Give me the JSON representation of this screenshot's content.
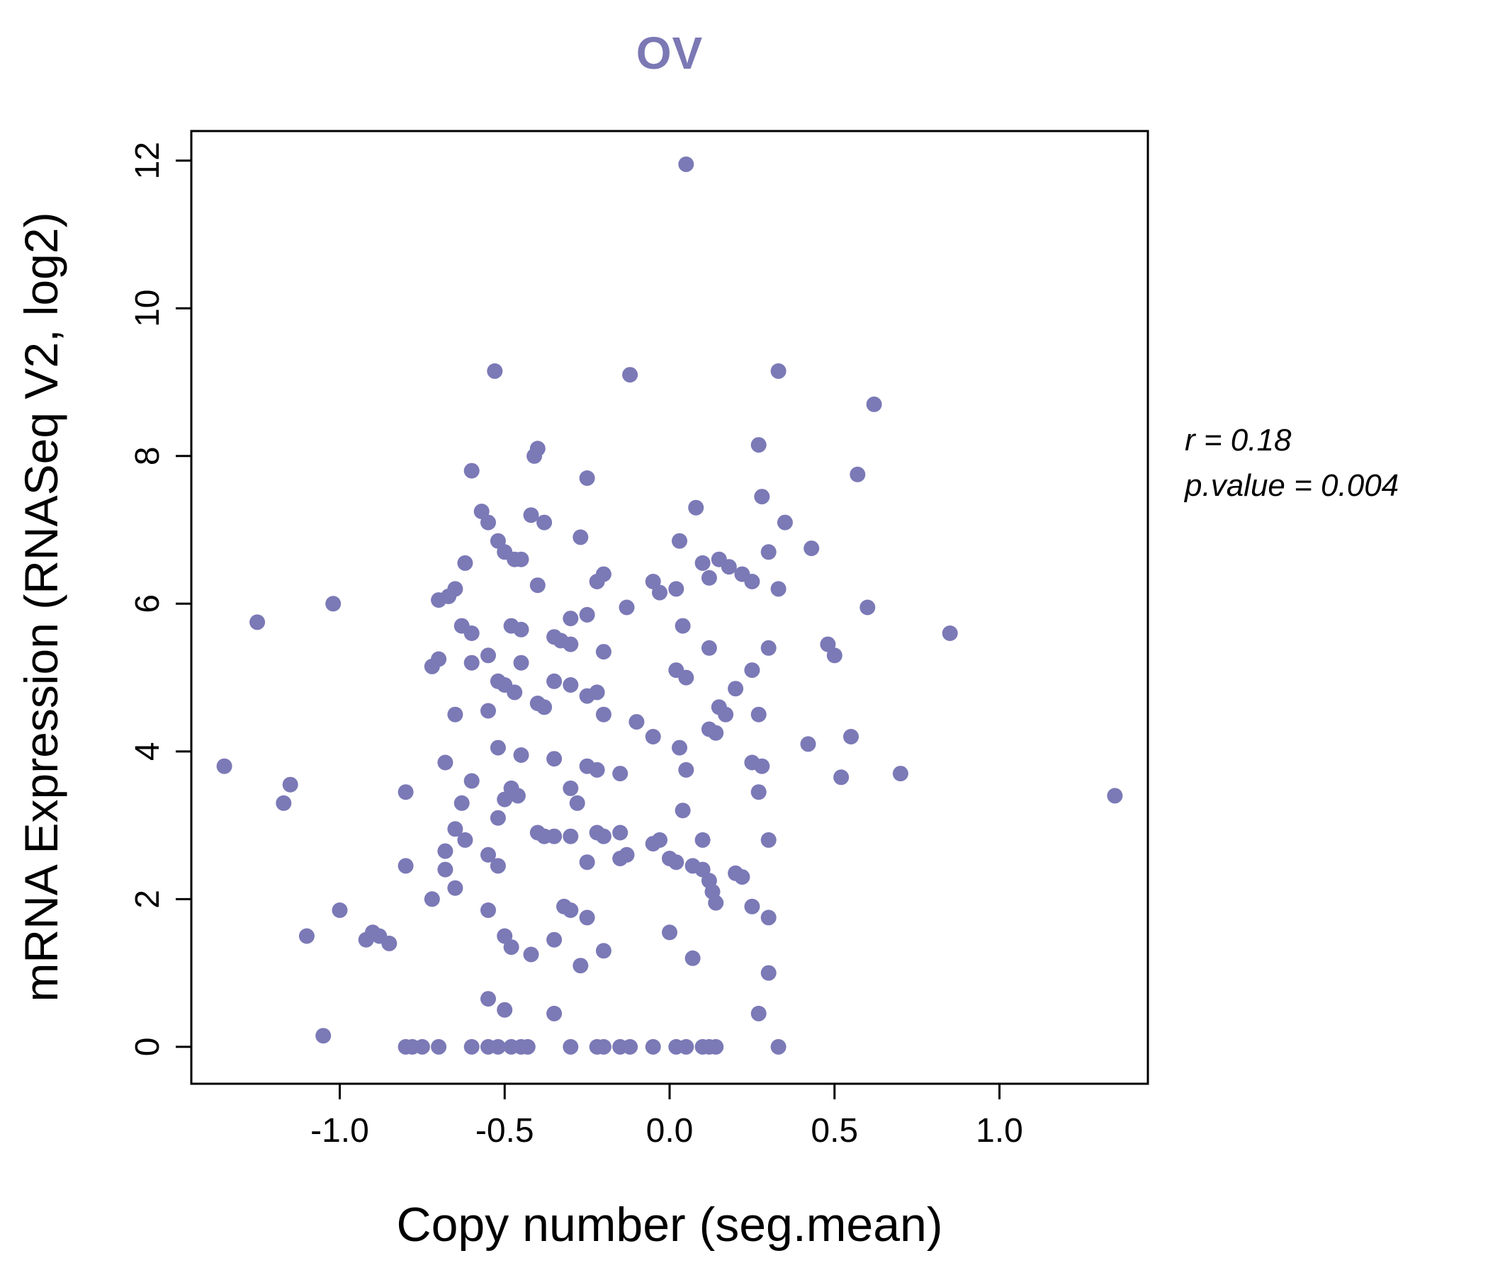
{
  "title": "OV",
  "title_color": "#7b78b4",
  "annotation": {
    "line1": "r = 0.18",
    "line2": "p.value = 0.004"
  },
  "chart_data": {
    "type": "scatter",
    "title": "OV",
    "xlabel": "Copy number (seg.mean)",
    "ylabel": "mRNA Expression (RNASeq V2, log2)",
    "xlim": [
      -1.45,
      1.45
    ],
    "ylim": [
      -0.5,
      12.4
    ],
    "grid": false,
    "xticks": [
      -1.0,
      -0.5,
      0.0,
      0.5,
      1.0
    ],
    "xtick_labels": [
      "-1.0",
      "-0.5",
      "0.0",
      "0.5",
      "1.0"
    ],
    "yticks": [
      0,
      2,
      4,
      6,
      8,
      10,
      12
    ],
    "ytick_labels": [
      "0",
      "2",
      "4",
      "6",
      "8",
      "10",
      "12"
    ],
    "point_color": "#7b79b6",
    "correlation_r": 0.18,
    "p_value": 0.004,
    "points": [
      [
        0.05,
        11.95
      ],
      [
        -0.53,
        9.15
      ],
      [
        -0.12,
        9.1
      ],
      [
        0.33,
        9.15
      ],
      [
        0.62,
        8.7
      ],
      [
        0.27,
        8.15
      ],
      [
        -0.4,
        8.1
      ],
      [
        -0.41,
        8.0
      ],
      [
        -0.6,
        7.8
      ],
      [
        0.57,
        7.75
      ],
      [
        -0.25,
        7.7
      ],
      [
        0.28,
        7.45
      ],
      [
        -0.57,
        7.25
      ],
      [
        0.08,
        7.3
      ],
      [
        -0.55,
        7.1
      ],
      [
        -0.42,
        7.2
      ],
      [
        -0.38,
        7.1
      ],
      [
        0.35,
        7.1
      ],
      [
        -0.27,
        6.9
      ],
      [
        -0.52,
        6.85
      ],
      [
        0.03,
        6.85
      ],
      [
        -0.5,
        6.7
      ],
      [
        -0.47,
        6.6
      ],
      [
        0.3,
        6.7
      ],
      [
        0.43,
        6.75
      ],
      [
        -0.62,
        6.55
      ],
      [
        -0.45,
        6.6
      ],
      [
        0.1,
        6.55
      ],
      [
        0.15,
        6.6
      ],
      [
        0.18,
        6.5
      ],
      [
        0.12,
        6.35
      ],
      [
        -0.2,
        6.4
      ],
      [
        -0.22,
        6.3
      ],
      [
        0.22,
        6.4
      ],
      [
        0.25,
        6.3
      ],
      [
        -0.4,
        6.25
      ],
      [
        -0.05,
        6.3
      ],
      [
        -0.03,
        6.15
      ],
      [
        -0.65,
        6.2
      ],
      [
        -0.67,
        6.1
      ],
      [
        0.02,
        6.2
      ],
      [
        0.33,
        6.2
      ],
      [
        -1.02,
        6.0
      ],
      [
        -0.7,
        6.05
      ],
      [
        -0.13,
        5.95
      ],
      [
        0.6,
        5.95
      ],
      [
        -0.3,
        5.8
      ],
      [
        -0.25,
        5.85
      ],
      [
        -1.25,
        5.75
      ],
      [
        -0.63,
        5.7
      ],
      [
        -0.6,
        5.6
      ],
      [
        -0.48,
        5.7
      ],
      [
        -0.45,
        5.65
      ],
      [
        0.04,
        5.7
      ],
      [
        0.85,
        5.6
      ],
      [
        -0.35,
        5.55
      ],
      [
        -0.33,
        5.5
      ],
      [
        -0.3,
        5.45
      ],
      [
        0.12,
        5.4
      ],
      [
        0.3,
        5.4
      ],
      [
        0.48,
        5.45
      ],
      [
        -0.55,
        5.3
      ],
      [
        -0.2,
        5.35
      ],
      [
        -0.6,
        5.2
      ],
      [
        -0.7,
        5.25
      ],
      [
        -0.72,
        5.15
      ],
      [
        -0.45,
        5.2
      ],
      [
        0.5,
        5.3
      ],
      [
        0.02,
        5.1
      ],
      [
        0.05,
        5.0
      ],
      [
        0.25,
        5.1
      ],
      [
        -0.52,
        4.95
      ],
      [
        -0.5,
        4.9
      ],
      [
        -0.35,
        4.95
      ],
      [
        -0.3,
        4.9
      ],
      [
        -0.47,
        4.8
      ],
      [
        -0.25,
        4.75
      ],
      [
        -0.22,
        4.8
      ],
      [
        0.2,
        4.85
      ],
      [
        -0.4,
        4.65
      ],
      [
        -0.38,
        4.6
      ],
      [
        -0.55,
        4.55
      ],
      [
        0.15,
        4.6
      ],
      [
        0.17,
        4.5
      ],
      [
        -0.2,
        4.5
      ],
      [
        -0.65,
        4.5
      ],
      [
        0.27,
        4.5
      ],
      [
        -0.1,
        4.4
      ],
      [
        0.12,
        4.3
      ],
      [
        0.14,
        4.25
      ],
      [
        -0.05,
        4.2
      ],
      [
        0.42,
        4.1
      ],
      [
        0.55,
        4.2
      ],
      [
        -0.52,
        4.05
      ],
      [
        0.03,
        4.05
      ],
      [
        -0.45,
        3.95
      ],
      [
        -0.35,
        3.9
      ],
      [
        -0.68,
        3.85
      ],
      [
        -1.35,
        3.8
      ],
      [
        -0.25,
        3.8
      ],
      [
        0.25,
        3.85
      ],
      [
        0.28,
        3.8
      ],
      [
        -0.22,
        3.75
      ],
      [
        0.05,
        3.75
      ],
      [
        -0.15,
        3.7
      ],
      [
        0.7,
        3.7
      ],
      [
        0.52,
        3.65
      ],
      [
        -0.6,
        3.6
      ],
      [
        -1.15,
        3.55
      ],
      [
        -0.48,
        3.5
      ],
      [
        -0.3,
        3.5
      ],
      [
        -0.8,
        3.45
      ],
      [
        0.27,
        3.45
      ],
      [
        1.35,
        3.4
      ],
      [
        -0.46,
        3.4
      ],
      [
        -1.17,
        3.3
      ],
      [
        -0.63,
        3.3
      ],
      [
        -0.5,
        3.35
      ],
      [
        -0.28,
        3.3
      ],
      [
        0.04,
        3.2
      ],
      [
        -0.52,
        3.1
      ],
      [
        -0.65,
        2.95
      ],
      [
        -0.4,
        2.9
      ],
      [
        -0.22,
        2.9
      ],
      [
        -0.15,
        2.9
      ],
      [
        -0.38,
        2.85
      ],
      [
        -0.35,
        2.85
      ],
      [
        -0.3,
        2.85
      ],
      [
        -0.2,
        2.85
      ],
      [
        -0.62,
        2.8
      ],
      [
        -0.03,
        2.8
      ],
      [
        0.1,
        2.8
      ],
      [
        0.3,
        2.8
      ],
      [
        -0.05,
        2.75
      ],
      [
        -0.68,
        2.65
      ],
      [
        -0.55,
        2.6
      ],
      [
        -0.13,
        2.6
      ],
      [
        -0.15,
        2.55
      ],
      [
        0.0,
        2.55
      ],
      [
        0.02,
        2.5
      ],
      [
        -0.25,
        2.5
      ],
      [
        -0.8,
        2.45
      ],
      [
        -0.68,
        2.4
      ],
      [
        -0.52,
        2.45
      ],
      [
        0.07,
        2.45
      ],
      [
        0.1,
        2.4
      ],
      [
        0.2,
        2.35
      ],
      [
        0.22,
        2.3
      ],
      [
        0.12,
        2.25
      ],
      [
        -0.65,
        2.15
      ],
      [
        0.13,
        2.1
      ],
      [
        -0.72,
        2.0
      ],
      [
        0.14,
        1.95
      ],
      [
        -1.0,
        1.85
      ],
      [
        -0.55,
        1.85
      ],
      [
        -0.32,
        1.9
      ],
      [
        0.25,
        1.9
      ],
      [
        -0.3,
        1.85
      ],
      [
        -0.25,
        1.75
      ],
      [
        0.3,
        1.75
      ],
      [
        -0.88,
        1.5
      ],
      [
        -1.1,
        1.5
      ],
      [
        -0.5,
        1.5
      ],
      [
        0.0,
        1.55
      ],
      [
        -0.35,
        1.45
      ],
      [
        -0.9,
        1.55
      ],
      [
        -0.85,
        1.4
      ],
      [
        -0.92,
        1.45
      ],
      [
        -0.48,
        1.35
      ],
      [
        -0.42,
        1.25
      ],
      [
        -0.2,
        1.3
      ],
      [
        0.07,
        1.2
      ],
      [
        -0.27,
        1.1
      ],
      [
        0.3,
        1.0
      ],
      [
        -0.55,
        0.65
      ],
      [
        -0.5,
        0.5
      ],
      [
        -0.35,
        0.45
      ],
      [
        0.27,
        0.45
      ],
      [
        -1.05,
        0.15
      ],
      [
        -0.8,
        0
      ],
      [
        -0.78,
        0
      ],
      [
        -0.75,
        0
      ],
      [
        -0.7,
        0
      ],
      [
        -0.6,
        0
      ],
      [
        -0.55,
        0
      ],
      [
        -0.52,
        0
      ],
      [
        -0.48,
        0
      ],
      [
        -0.45,
        0
      ],
      [
        -0.43,
        0
      ],
      [
        -0.3,
        0
      ],
      [
        -0.22,
        0
      ],
      [
        -0.2,
        0
      ],
      [
        -0.15,
        0
      ],
      [
        -0.12,
        0
      ],
      [
        -0.05,
        0
      ],
      [
        0.02,
        0
      ],
      [
        0.05,
        0
      ],
      [
        0.1,
        0
      ],
      [
        0.12,
        0
      ],
      [
        0.14,
        0
      ],
      [
        0.33,
        0
      ]
    ]
  }
}
